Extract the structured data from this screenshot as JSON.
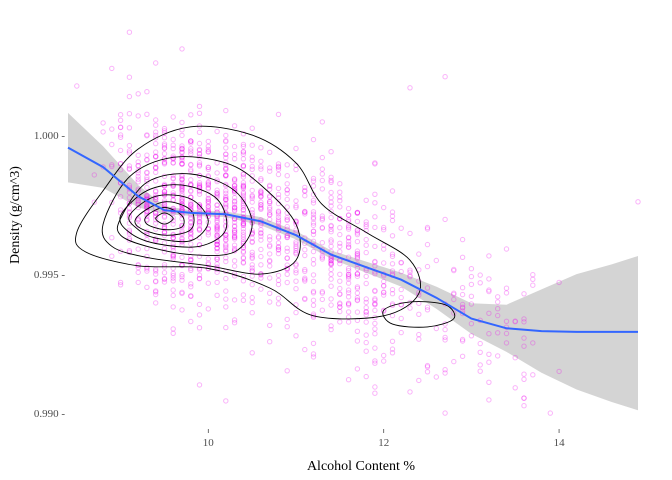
{
  "chart_data": {
    "type": "scatter",
    "title": "",
    "xlabel": "Alcohol Content %",
    "ylabel": "Density (g/cm^3)",
    "xlim": [
      8.4,
      14.9
    ],
    "ylim": [
      0.9895,
      1.0045
    ],
    "x_ticks": [
      10,
      12,
      14
    ],
    "x_tick_labels": [
      "10",
      "12",
      "14"
    ],
    "y_ticks": [
      0.99,
      0.995,
      1.0
    ],
    "y_tick_labels": [
      "0.990 -",
      "0.995 -",
      "1.000 -"
    ],
    "grid": false,
    "legend": "none",
    "colors": {
      "points": "#ee00ee",
      "smooth_line": "#3366ff",
      "ribbon": "#cccccc",
      "contour": "#000000",
      "axis_text": "#4d4d4d"
    },
    "points": {
      "count": 1350,
      "opacity": 0.3,
      "sample": [
        {
          "x": 9.4,
          "y": 0.9971
        },
        {
          "x": 9.5,
          "y": 0.9968
        },
        {
          "x": 9.5,
          "y": 0.9975
        },
        {
          "x": 9.2,
          "y": 0.998
        },
        {
          "x": 9.8,
          "y": 0.9966
        },
        {
          "x": 10.0,
          "y": 0.9972
        },
        {
          "x": 10.5,
          "y": 0.9965
        },
        {
          "x": 11.0,
          "y": 0.996
        },
        {
          "x": 11.5,
          "y": 0.9955
        },
        {
          "x": 12.0,
          "y": 0.995
        },
        {
          "x": 12.5,
          "y": 0.9945
        },
        {
          "x": 13.0,
          "y": 0.9942
        },
        {
          "x": 9.1,
          "y": 1.0037
        },
        {
          "x": 9.7,
          "y": 1.0031
        },
        {
          "x": 8.9,
          "y": 1.0024
        },
        {
          "x": 12.7,
          "y": 0.99
        },
        {
          "x": 13.9,
          "y": 0.99
        },
        {
          "x": 14.9,
          "y": 0.9976
        },
        {
          "x": 14.0,
          "y": 0.9947
        },
        {
          "x": 14.0,
          "y": 0.9915
        },
        {
          "x": 12.3,
          "y": 1.0017
        },
        {
          "x": 12.7,
          "y": 1.0021
        },
        {
          "x": 13.6,
          "y": 0.9914
        }
      ]
    },
    "smooth": {
      "method": "loess",
      "x": [
        8.4,
        8.8,
        9.2,
        9.5,
        9.8,
        10.2,
        10.6,
        11.0,
        11.4,
        11.8,
        12.2,
        12.6,
        13.0,
        13.4,
        13.8,
        14.2,
        14.6,
        14.9
      ],
      "y": [
        0.99955,
        0.99885,
        0.9978,
        0.9973,
        0.9972,
        0.99715,
        0.9969,
        0.9964,
        0.9957,
        0.99525,
        0.9948,
        0.99415,
        0.9934,
        0.99305,
        0.99295,
        0.99292,
        0.99292,
        0.99292
      ],
      "ci_upper": [
        1.0008,
        0.9996,
        0.9982,
        0.99745,
        0.9973,
        0.99725,
        0.99705,
        0.99655,
        0.99585,
        0.99545,
        0.99505,
        0.99455,
        0.99395,
        0.9939,
        0.99445,
        0.995,
        0.99535,
        0.99565
      ],
      "ci_lower": [
        0.9983,
        0.9981,
        0.9974,
        0.99715,
        0.9971,
        0.99705,
        0.99675,
        0.99625,
        0.99555,
        0.99505,
        0.99455,
        0.99375,
        0.99285,
        0.9922,
        0.99145,
        0.99085,
        0.9904,
        0.9901
      ]
    },
    "density_contours": [
      {
        "level": 1,
        "points": [
          [
            8.5,
            0.9965
          ],
          [
            8.8,
            0.998
          ],
          [
            9.2,
            0.9995
          ],
          [
            9.8,
            1.0003
          ],
          [
            10.5,
            1.0
          ],
          [
            11.0,
            0.999
          ],
          [
            11.3,
            0.9975
          ],
          [
            11.8,
            0.9965
          ],
          [
            12.3,
            0.9955
          ],
          [
            12.4,
            0.9943
          ],
          [
            12.0,
            0.9935
          ],
          [
            11.2,
            0.9935
          ],
          [
            10.7,
            0.9945
          ],
          [
            10.0,
            0.9952
          ],
          [
            9.2,
            0.9953
          ],
          [
            8.6,
            0.9958
          ]
        ]
      },
      {
        "level": 2,
        "points": [
          [
            8.8,
            0.9968
          ],
          [
            9.1,
            0.9985
          ],
          [
            9.6,
            0.9992
          ],
          [
            10.2,
            0.999
          ],
          [
            10.6,
            0.9982
          ],
          [
            11.0,
            0.9968
          ],
          [
            11.0,
            0.9955
          ],
          [
            10.6,
            0.995
          ],
          [
            10.0,
            0.9953
          ],
          [
            9.3,
            0.9956
          ],
          [
            8.9,
            0.996
          ]
        ]
      },
      {
        "level": 3,
        "points": [
          [
            9.0,
            0.997
          ],
          [
            9.3,
            0.9983
          ],
          [
            9.8,
            0.9986
          ],
          [
            10.3,
            0.998
          ],
          [
            10.5,
            0.9968
          ],
          [
            10.3,
            0.9958
          ],
          [
            9.8,
            0.9957
          ],
          [
            9.3,
            0.996
          ],
          [
            9.0,
            0.9964
          ]
        ]
      },
      {
        "level": 4,
        "points": [
          [
            9.0,
            0.9971
          ],
          [
            9.3,
            0.998
          ],
          [
            9.7,
            0.9982
          ],
          [
            10.1,
            0.9977
          ],
          [
            10.2,
            0.9966
          ],
          [
            9.9,
            0.996
          ],
          [
            9.4,
            0.9961
          ],
          [
            9.1,
            0.9965
          ]
        ]
      },
      {
        "level": 5,
        "points": [
          [
            9.1,
            0.9971
          ],
          [
            9.4,
            0.9978
          ],
          [
            9.8,
            0.9977
          ],
          [
            10.0,
            0.9969
          ],
          [
            9.8,
            0.9962
          ],
          [
            9.4,
            0.9963
          ],
          [
            9.2,
            0.9966
          ]
        ]
      },
      {
        "level": 6,
        "points": [
          [
            9.2,
            0.9971
          ],
          [
            9.5,
            0.9976
          ],
          [
            9.8,
            0.9973
          ],
          [
            9.8,
            0.9966
          ],
          [
            9.5,
            0.9964
          ],
          [
            9.2,
            0.9967
          ]
        ]
      },
      {
        "level": 7,
        "points": [
          [
            9.3,
            0.9971
          ],
          [
            9.5,
            0.9974
          ],
          [
            9.7,
            0.9971
          ],
          [
            9.7,
            0.9967
          ],
          [
            9.5,
            0.9966
          ],
          [
            9.3,
            0.9968
          ]
        ]
      },
      {
        "level": 8,
        "points": [
          [
            9.4,
            0.997
          ],
          [
            9.5,
            0.9972
          ],
          [
            9.6,
            0.997
          ],
          [
            9.5,
            0.9968
          ]
        ]
      },
      {
        "level": 1,
        "points": [
          [
            12.0,
            0.9937
          ],
          [
            12.3,
            0.994
          ],
          [
            12.7,
            0.9939
          ],
          [
            12.8,
            0.9934
          ],
          [
            12.5,
            0.9931
          ],
          [
            12.1,
            0.9932
          ]
        ]
      }
    ]
  }
}
